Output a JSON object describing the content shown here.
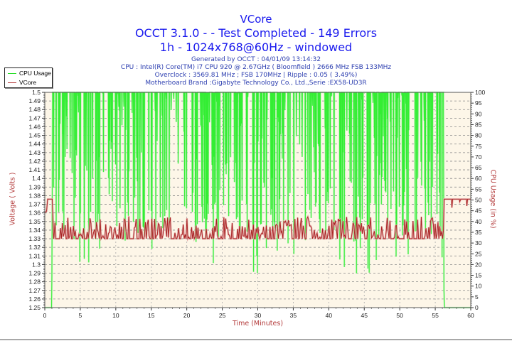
{
  "header": {
    "title": "VCore",
    "line2": "OCCT 3.1.0 -  - Test Completed - 149 Errors",
    "line3": "1h - 1024x768@60Hz - windowed",
    "generated": "Generated by OCCT : 04/01/09 13:14:32",
    "cpu": "CPU : Intel(R) Core(TM) i7 CPU 920 @ 2.67GHz ( Bloomfield ) 2666 MHz FSB 133MHz",
    "overclock": "Overclock : 3569.81 MHz ; FSB 170MHz | Ripple : 0.05 ( 3.49%)",
    "motherboard": "Motherboard Brand :Gigabyte Technology Co., Ltd.,Serie :EX58-UD3R"
  },
  "legend": {
    "items": [
      {
        "label": "CPU Usage",
        "color": "#22dd22"
      },
      {
        "label": "VCore",
        "color": "#b03030"
      }
    ]
  },
  "colors": {
    "plot_bg": "#fdf6e8",
    "cpu": "#33ee33",
    "cpu_light": "#99f099",
    "vcore": "#a82020",
    "vcore_light": "#e0a0a0",
    "grid": "#888888",
    "title": "#1a1aee",
    "axis_label": "#b33a3a"
  },
  "axes": {
    "xlabel": "Time (Minutes)",
    "ylabel_left": "Voltage ( Volts )",
    "ylabel_right": "CPU Usage (in %)",
    "x_ticks": [
      "0",
      "5",
      "10",
      "15",
      "20",
      "25",
      "30",
      "35",
      "40",
      "45",
      "50",
      "55",
      "60"
    ],
    "y_left_ticks": [
      "1.25",
      "1.26",
      "1.27",
      "1.28",
      "1.29",
      "1.3",
      "1.31",
      "1.32",
      "1.33",
      "1.34",
      "1.35",
      "1.36",
      "1.37",
      "1.38",
      "1.39",
      "1.4",
      "1.41",
      "1.42",
      "1.43",
      "1.44",
      "1.45",
      "1.46",
      "1.47",
      "1.48",
      "1.49",
      "1.5"
    ],
    "y_right_ticks": [
      "0",
      "5",
      "10",
      "15",
      "20",
      "25",
      "30",
      "35",
      "40",
      "45",
      "50",
      "55",
      "60",
      "65",
      "70",
      "75",
      "80",
      "85",
      "90",
      "95",
      "100"
    ]
  },
  "chart_data": {
    "type": "line",
    "title": "VCore",
    "subtitle": "OCCT 3.1.0 -  - Test Completed - 149 Errors",
    "xlabel": "Time (Minutes)",
    "ylabel": "Voltage ( Volts )",
    "ylabel_right": "CPU Usage (in %)",
    "xlim": [
      0,
      60
    ],
    "ylim": [
      1.25,
      1.5
    ],
    "ylim_right": [
      0,
      100
    ],
    "grid": true,
    "legend_position": "top-left",
    "series": [
      {
        "name": "VCore",
        "axis": "left",
        "description": "Idle ~1.376V (0-1 min), under load oscillates 1.33-1.35V with spikes to 1.355V (1-56.2 min), returns to ~1.376V idle (56.2-60 min)",
        "x": [
          0,
          0.3,
          0.5,
          1.0,
          1.1,
          1.3,
          1.6,
          2.0,
          2.5,
          3.0,
          3.5,
          4.0,
          5.0,
          6.0,
          7.0,
          8.0,
          9.0,
          10.0,
          12.0,
          14.0,
          16.0,
          18.0,
          20.0,
          22.0,
          24.0,
          26.0,
          28.0,
          30.0,
          32.0,
          34.0,
          36.0,
          38.0,
          40.0,
          42.0,
          44.0,
          46.0,
          48.0,
          50.0,
          52.0,
          54.0,
          55.0,
          56.0,
          56.2,
          56.4,
          57.0,
          57.5,
          58.0,
          59.0,
          59.5,
          60.0
        ],
        "values": [
          1.36,
          1.362,
          1.376,
          1.376,
          1.376,
          1.33,
          1.345,
          1.33,
          1.34,
          1.33,
          1.355,
          1.33,
          1.345,
          1.33,
          1.35,
          1.335,
          1.33,
          1.345,
          1.33,
          1.35,
          1.33,
          1.345,
          1.33,
          1.34,
          1.355,
          1.33,
          1.345,
          1.33,
          1.35,
          1.335,
          1.345,
          1.33,
          1.355,
          1.33,
          1.345,
          1.33,
          1.35,
          1.335,
          1.33,
          1.345,
          1.33,
          1.34,
          1.376,
          1.376,
          1.376,
          1.372,
          1.376,
          1.376,
          1.366,
          1.376
        ]
      },
      {
        "name": "CPU Usage",
        "axis": "right",
        "description": "0% at start, jumps to ~100% at ~1 min, stays near 100% with frequent dips to 30-60% until ~56.2 min, then drops to 0%",
        "x": [
          0,
          0.9,
          1.0,
          1.1,
          2,
          3,
          5,
          8,
          10,
          15,
          20,
          25,
          30,
          35,
          40,
          45,
          50,
          55,
          56.0,
          56.2,
          56.3,
          60
        ],
        "values": [
          0,
          0,
          25,
          100,
          100,
          100,
          100,
          100,
          100,
          100,
          100,
          100,
          100,
          100,
          100,
          100,
          100,
          100,
          60,
          10,
          0,
          0
        ]
      }
    ]
  }
}
